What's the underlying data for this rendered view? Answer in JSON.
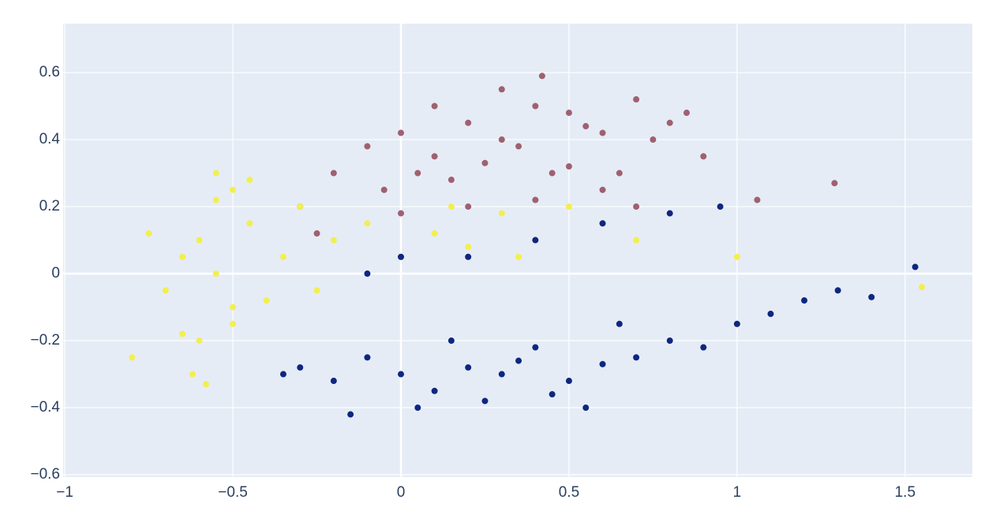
{
  "chart_data": {
    "type": "scatter",
    "xlim": [
      -1.005,
      1.7
    ],
    "ylim": [
      -0.607,
      0.746
    ],
    "xticks": [
      {
        "value": -1,
        "label": "−1"
      },
      {
        "value": -0.5,
        "label": "−0.5"
      },
      0,
      0.5,
      1,
      1.5
    ],
    "yticks": [
      {
        "value": -0.6,
        "label": "−0.6"
      },
      {
        "value": -0.4,
        "label": "−0.4"
      },
      {
        "value": -0.2,
        "label": "−0.2"
      },
      0,
      0.2,
      0.4,
      0.6
    ],
    "grid": true,
    "series": [
      {
        "color": "#a0606f",
        "x": [
          -0.2,
          -0.1,
          0,
          0.1,
          0.2,
          0.3,
          0.4,
          0.5,
          0.6,
          0.7,
          0.8,
          0.9,
          -0.05,
          0.05,
          0.15,
          0.25,
          0.35,
          0.45,
          0.55,
          0.65,
          0.75,
          0.85,
          -0.3,
          0.0,
          0.2,
          0.4,
          0.6,
          0.1,
          0.3,
          0.5,
          0.7,
          1.06,
          1.29,
          0.42,
          -0.25
        ],
        "y": [
          0.3,
          0.38,
          0.42,
          0.35,
          0.45,
          0.4,
          0.5,
          0.48,
          0.42,
          0.52,
          0.45,
          0.35,
          0.25,
          0.3,
          0.28,
          0.33,
          0.38,
          0.3,
          0.44,
          0.3,
          0.4,
          0.48,
          0.2,
          0.18,
          0.2,
          0.22,
          0.25,
          0.5,
          0.55,
          0.32,
          0.2,
          0.22,
          0.27,
          0.59,
          0.12
        ]
      },
      {
        "color": "#f2ef4e",
        "x": [
          -0.55,
          -0.6,
          -0.5,
          -0.65,
          -0.45,
          -0.7,
          -0.4,
          -0.55,
          -0.6,
          -0.5,
          -0.75,
          -0.35,
          -0.3,
          -0.2,
          -0.1,
          0,
          0.1,
          0.2,
          0.3,
          0.4,
          0.5,
          0.6,
          -0.65,
          -0.45,
          -0.55,
          -0.8,
          -0.62,
          -0.5,
          -0.25,
          0.15,
          0.35,
          0.7,
          1.0,
          1.55,
          -0.58
        ],
        "y": [
          0,
          0.1,
          -0.1,
          0.05,
          0.15,
          -0.05,
          -0.08,
          0.22,
          -0.2,
          -0.15,
          0.12,
          0.05,
          0.2,
          0.1,
          0.15,
          0.05,
          0.12,
          0.08,
          0.18,
          0.1,
          0.2,
          0.15,
          -0.18,
          0.28,
          0.3,
          -0.25,
          -0.3,
          0.25,
          -0.05,
          0.2,
          0.05,
          0.1,
          0.05,
          -0.04,
          -0.33
        ]
      },
      {
        "color": "#0f2680",
        "x": [
          0,
          0.1,
          0.2,
          -0.1,
          -0.2,
          0.3,
          0.4,
          0.5,
          0.6,
          -0.3,
          0.05,
          0.15,
          0.25,
          0.35,
          0.45,
          -0.15,
          0.7,
          0.8,
          0.9,
          1.0,
          1.1,
          1.2,
          1.3,
          1.4,
          1.53,
          -0.1,
          0.0,
          0.2,
          0.4,
          0.6,
          0.8,
          0.65,
          0.95,
          -0.35,
          0.55
        ],
        "y": [
          -0.3,
          -0.35,
          -0.28,
          -0.25,
          -0.32,
          -0.3,
          -0.22,
          -0.32,
          -0.27,
          -0.28,
          -0.4,
          -0.2,
          -0.38,
          -0.26,
          -0.36,
          -0.42,
          -0.25,
          -0.2,
          -0.22,
          -0.15,
          -0.12,
          -0.08,
          -0.05,
          -0.07,
          0.02,
          0.0,
          0.05,
          0.05,
          0.1,
          0.15,
          0.18,
          -0.15,
          0.2,
          -0.3,
          -0.4
        ]
      }
    ]
  }
}
